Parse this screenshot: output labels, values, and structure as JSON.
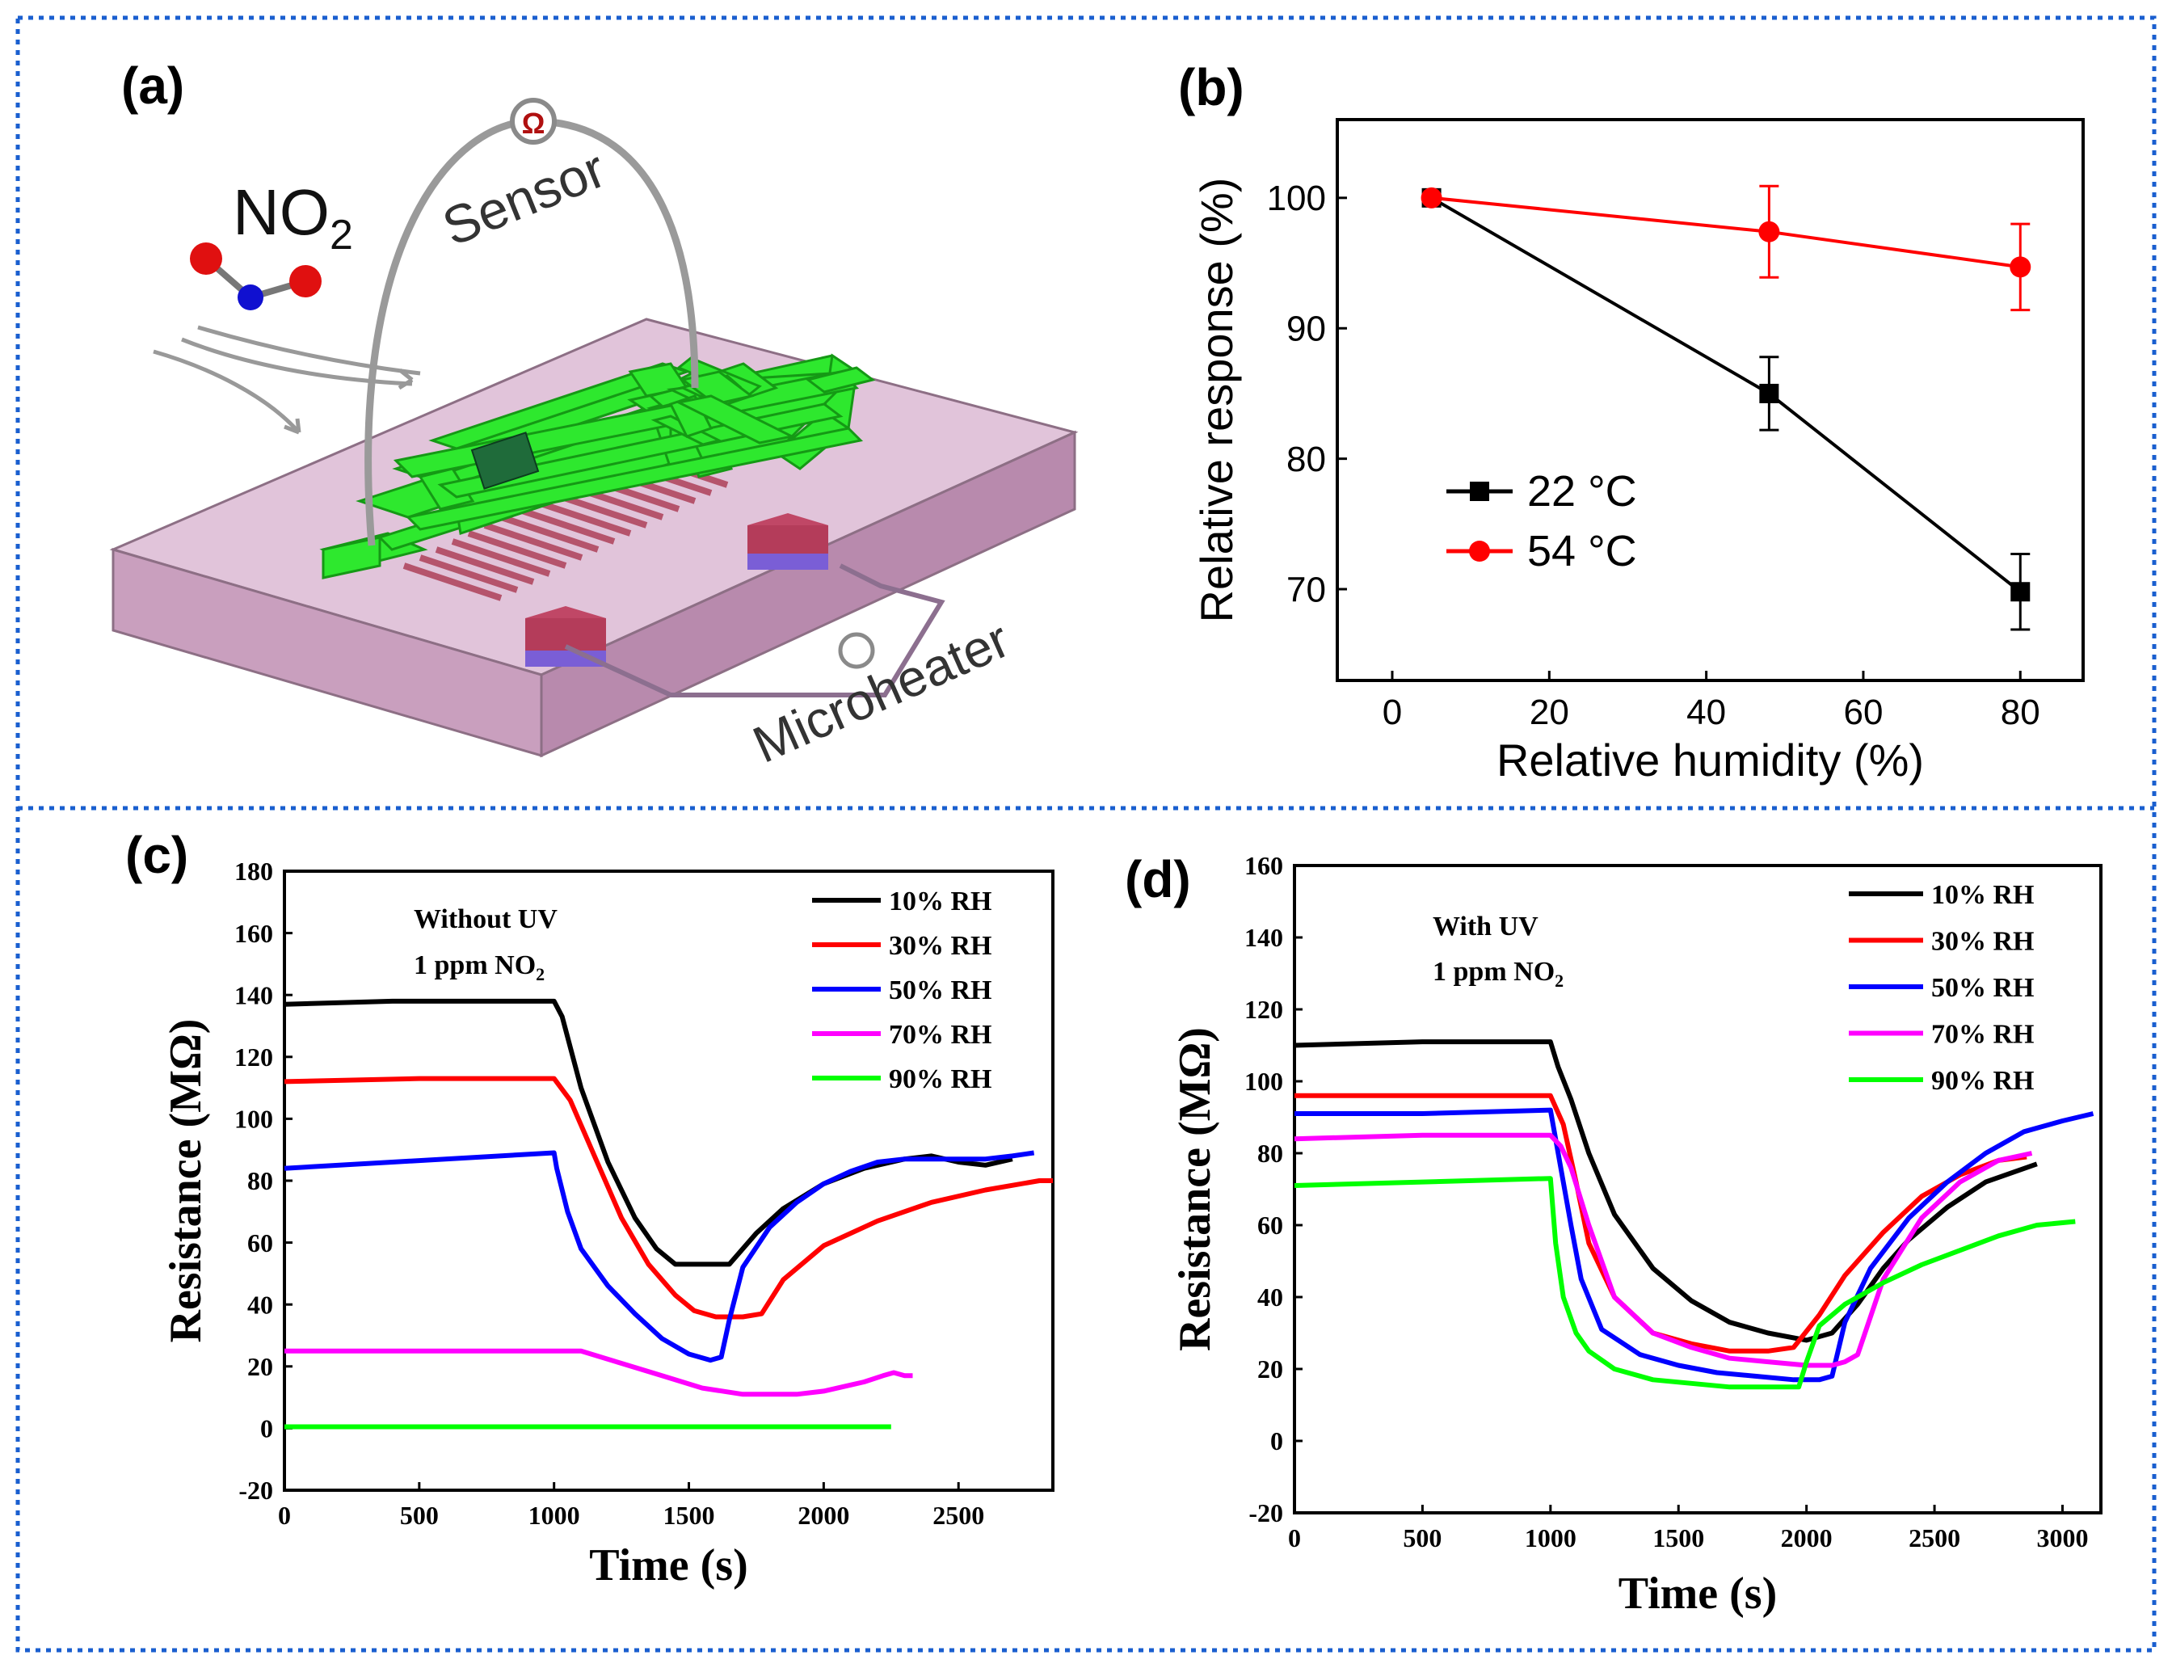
{
  "panels": {
    "a": {
      "label": "(a)",
      "gas_label_main": "NO",
      "gas_label_sub": "2",
      "sensor_label": "Sensor",
      "heater_label": "Microheater",
      "colors": {
        "substrate": "#d9b4cf",
        "electrode": "#2ee82e",
        "heater": "#b0485f",
        "pad": "#8a5cd6",
        "wire": "#9a9a9a"
      }
    },
    "b": {
      "label": "(b)"
    },
    "c": {
      "label": "(c)",
      "note_line1": "Without UV",
      "note_line2_main": "1 ppm NO",
      "note_line2_sub": "2"
    },
    "d": {
      "label": "(d)",
      "note_line1": "With UV",
      "note_line2_main": "1 ppm NO",
      "note_line2_sub": "2"
    }
  },
  "chart_data": [
    {
      "id": "b",
      "type": "line",
      "xlabel": "Relative humidity (%)",
      "ylabel": "Relative response (%)",
      "xlim": [
        -7,
        88
      ],
      "ylim": [
        63,
        106
      ],
      "xticks": [
        0,
        20,
        40,
        60,
        80
      ],
      "yticks": [
        70,
        80,
        90,
        100
      ],
      "legend_position": "lower-left",
      "series": [
        {
          "name": "22 °C",
          "color": "#000000",
          "marker": "square",
          "x": [
            5,
            48,
            80
          ],
          "y": [
            100,
            85,
            69.8
          ],
          "err": [
            0,
            2.8,
            2.9
          ]
        },
        {
          "name": "54 °C",
          "color": "#ff0000",
          "marker": "circle",
          "x": [
            5,
            48,
            80
          ],
          "y": [
            100,
            97.4,
            94.7
          ],
          "err": [
            0,
            3.5,
            3.3
          ]
        }
      ]
    },
    {
      "id": "c",
      "type": "line",
      "xlabel": "Time (s)",
      "ylabel": "Resistance (MΩ)",
      "xlim": [
        0,
        2850
      ],
      "ylim": [
        -20,
        180
      ],
      "xticks": [
        0,
        500,
        1000,
        1500,
        2000,
        2500
      ],
      "yticks": [
        -20,
        0,
        20,
        40,
        60,
        80,
        100,
        120,
        140,
        160,
        180
      ],
      "legend_position": "top-right",
      "series": [
        {
          "name": "10% RH",
          "color": "#000000",
          "x": [
            0,
            400,
            1000,
            1030,
            1100,
            1200,
            1300,
            1380,
            1450,
            1550,
            1650,
            1750,
            1850,
            2000,
            2150,
            2300,
            2400,
            2500,
            2600,
            2700
          ],
          "y": [
            137,
            138,
            138,
            133,
            110,
            86,
            68,
            58,
            53,
            53,
            53,
            63,
            71,
            79,
            84,
            87,
            88,
            86,
            85,
            87
          ]
        },
        {
          "name": "30% RH",
          "color": "#ff0000",
          "x": [
            0,
            500,
            1000,
            1060,
            1150,
            1250,
            1350,
            1450,
            1520,
            1600,
            1700,
            1770,
            1850,
            2000,
            2200,
            2400,
            2600,
            2800,
            2850
          ],
          "y": [
            112,
            113,
            113,
            106,
            88,
            68,
            53,
            43,
            38,
            36,
            36,
            37,
            48,
            59,
            67,
            73,
            77,
            80,
            80
          ]
        },
        {
          "name": "50% RH",
          "color": "#0000ff",
          "x": [
            0,
            400,
            1000,
            1010,
            1050,
            1100,
            1200,
            1300,
            1400,
            1500,
            1580,
            1620,
            1650,
            1700,
            1800,
            1900,
            2000,
            2100,
            2200,
            2300,
            2400,
            2500,
            2600,
            2700,
            2780
          ],
          "y": [
            84,
            86,
            89,
            84,
            70,
            58,
            46,
            37,
            29,
            24,
            22,
            23,
            35,
            52,
            65,
            73,
            79,
            83,
            86,
            87,
            87,
            87,
            87,
            88,
            89
          ]
        },
        {
          "name": "70% RH",
          "color": "#ff00ff",
          "x": [
            0,
            500,
            1100,
            1250,
            1400,
            1550,
            1700,
            1800,
            1900,
            2000,
            2100,
            2150,
            2220,
            2260,
            2300,
            2330
          ],
          "y": [
            25,
            25,
            25,
            21,
            17,
            13,
            11,
            11,
            11,
            12,
            14,
            15,
            17,
            18,
            17,
            17
          ]
        },
        {
          "name": "90% RH",
          "color": "#00ff00",
          "x": [
            0,
            2250
          ],
          "y": [
            0.5,
            0.5
          ]
        }
      ]
    },
    {
      "id": "d",
      "type": "line",
      "xlabel": "Time (s)",
      "ylabel": "Resistance (MΩ)",
      "xlim": [
        0,
        3150
      ],
      "ylim": [
        -20,
        160
      ],
      "xticks": [
        0,
        500,
        1000,
        1500,
        2000,
        2500,
        3000
      ],
      "yticks": [
        -20,
        0,
        20,
        40,
        60,
        80,
        100,
        120,
        140,
        160
      ],
      "legend_position": "top-right",
      "series": [
        {
          "name": "10% RH",
          "color": "#000000",
          "x": [
            0,
            500,
            1000,
            1030,
            1080,
            1150,
            1250,
            1400,
            1550,
            1700,
            1850,
            2000,
            2100,
            2200,
            2300,
            2400,
            2550,
            2700,
            2900
          ],
          "y": [
            110,
            111,
            111,
            104,
            95,
            80,
            63,
            48,
            39,
            33,
            30,
            28,
            30,
            38,
            48,
            56,
            65,
            72,
            77
          ]
        },
        {
          "name": "30% RH",
          "color": "#ff0000",
          "x": [
            0,
            500,
            1000,
            1050,
            1100,
            1150,
            1250,
            1400,
            1550,
            1700,
            1850,
            1950,
            2050,
            2150,
            2300,
            2450,
            2600,
            2750,
            2860
          ],
          "y": [
            96,
            96,
            96,
            88,
            72,
            55,
            40,
            30,
            27,
            25,
            25,
            26,
            35,
            46,
            58,
            68,
            74,
            78,
            79
          ]
        },
        {
          "name": "50% RH",
          "color": "#0000ff",
          "x": [
            0,
            500,
            1000,
            1050,
            1080,
            1120,
            1200,
            1350,
            1500,
            1650,
            1800,
            1950,
            2050,
            2100,
            2150,
            2250,
            2400,
            2550,
            2700,
            2850,
            3000,
            3120
          ],
          "y": [
            91,
            91,
            92,
            72,
            60,
            45,
            31,
            24,
            21,
            19,
            18,
            17,
            17,
            18,
            33,
            48,
            62,
            72,
            80,
            86,
            89,
            91
          ]
        },
        {
          "name": "70% RH",
          "color": "#ff00ff",
          "x": [
            0,
            500,
            1000,
            1040,
            1080,
            1150,
            1250,
            1400,
            1550,
            1700,
            1850,
            2000,
            2100,
            2150,
            2200,
            2300,
            2450,
            2600,
            2750,
            2880
          ],
          "y": [
            84,
            85,
            85,
            82,
            76,
            60,
            40,
            30,
            26,
            23,
            22,
            21,
            21,
            22,
            24,
            45,
            62,
            72,
            78,
            80
          ]
        },
        {
          "name": "90% RH",
          "color": "#00ff00",
          "x": [
            0,
            500,
            1000,
            1020,
            1050,
            1100,
            1150,
            1250,
            1400,
            1550,
            1700,
            1850,
            1970,
            2000,
            2050,
            2150,
            2300,
            2450,
            2600,
            2750,
            2900,
            3050
          ],
          "y": [
            71,
            72,
            73,
            55,
            40,
            30,
            25,
            20,
            17,
            16,
            15,
            15,
            15,
            22,
            32,
            38,
            44,
            49,
            53,
            57,
            60,
            61
          ]
        }
      ]
    }
  ]
}
